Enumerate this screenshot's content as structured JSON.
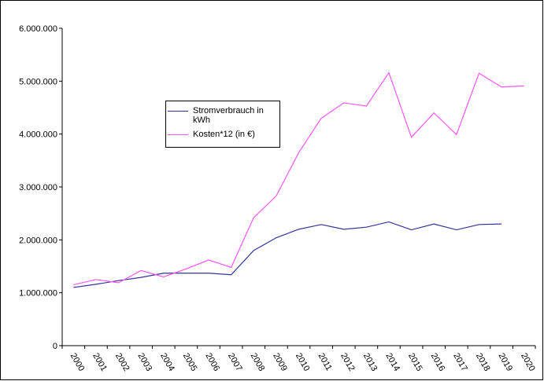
{
  "chart_data": {
    "type": "line",
    "categories": [
      "2000",
      "2001",
      "2002",
      "2003",
      "2004",
      "2005",
      "2006",
      "2007",
      "2008",
      "2009",
      "2010",
      "2011",
      "2012",
      "2013",
      "2014",
      "2015",
      "2016",
      "2017",
      "2018",
      "2019",
      "2020"
    ],
    "series": [
      {
        "name": "Stromverbrauch in kWh",
        "color": "#333399",
        "values": [
          1100000,
          1160000,
          1230000,
          1290000,
          1370000,
          1370000,
          1370000,
          1340000,
          1800000,
          2040000,
          2200000,
          2290000,
          2200000,
          2240000,
          2340000,
          2190000,
          2300000,
          2190000,
          2290000,
          2300000,
          null
        ]
      },
      {
        "name": "Kosten*12 (in €)",
        "color": "#ff55ff",
        "values": [
          1150000,
          1250000,
          1190000,
          1420000,
          1300000,
          1450000,
          1620000,
          1480000,
          2420000,
          2830000,
          3650000,
          4300000,
          4590000,
          4530000,
          5160000,
          3940000,
          4400000,
          3990000,
          5150000,
          4890000,
          4910000
        ]
      }
    ],
    "ylim": [
      0,
      6000000
    ],
    "yticks": [
      0,
      {
        "value": 1000000,
        "label": "1.000.000"
      },
      {
        "value": 2000000,
        "label": "2.000.000"
      },
      {
        "value": 3000000,
        "label": "3.000.000"
      },
      {
        "value": 4000000,
        "label": "4.000.000"
      },
      {
        "value": 5000000,
        "label": "5.000.000"
      },
      {
        "value": 6000000,
        "label": "6.000.000"
      }
    ],
    "grid": false
  }
}
